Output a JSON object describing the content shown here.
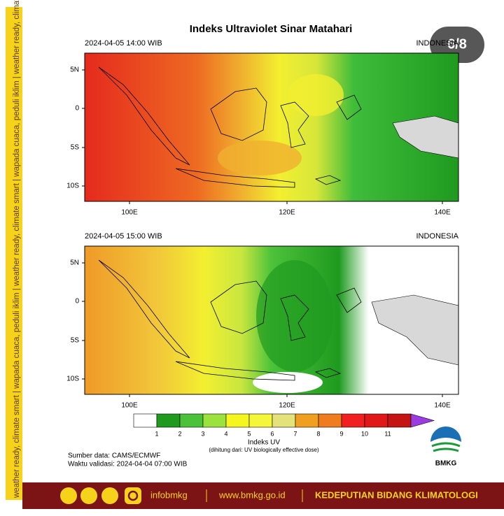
{
  "side_banner": "weather ready, climate smart  |  wapada cuaca, peduli iklim  |  weather ready, climate smart  |  wapada cuaca, peduli iklim  |  weather ready, climate smart  |  wapada cuaca, peduli iklim",
  "badge": "6/8",
  "title": "Indeks Ultraviolet Sinar Matahari",
  "map_axes": {
    "lat_labels": [
      "5N",
      "0",
      "5S",
      "10S"
    ],
    "lon_labels": [
      "100E",
      "120E",
      "140E"
    ]
  },
  "panels": [
    {
      "time": "2024-04-05  14:00 WIB",
      "region": "INDONESIA"
    },
    {
      "time": "2024-04-05  15:00 WIB",
      "region": "INDONESIA"
    }
  ],
  "colorbar": {
    "levels": [
      1,
      2,
      3,
      4,
      5,
      6,
      7,
      8,
      9,
      10,
      11
    ],
    "colors": [
      "#ffffff",
      "#1f9a1f",
      "#4cc23a",
      "#9be33c",
      "#f5f51f",
      "#f5f53a",
      "#e3e37a",
      "#f0a020",
      "#f07c20",
      "#f02020",
      "#e01818",
      "#c41414",
      "#9a3ce0"
    ],
    "title": "Indeks UV",
    "note": "(dihitung dari: UV biologically effective dose)"
  },
  "source": "Sumber data: CAMS/ECMWF",
  "validity": "Waktu validasi: 2024-04-04 07:00 WIB",
  "logo_text": "BMKG",
  "footer": {
    "handle": "infobmkg",
    "website": "www.bmkg.go.id",
    "department": "KEDEPUTIAN BIDANG KLIMATOLOGI"
  }
}
